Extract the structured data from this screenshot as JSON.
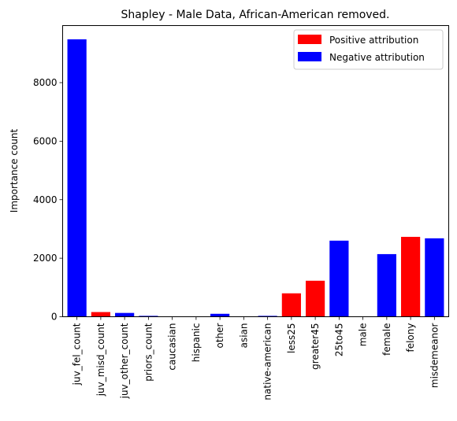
{
  "chart_data": {
    "type": "bar",
    "title": "Shapley - Male Data, African-American removed.",
    "xlabel": "",
    "ylabel": "Importance count",
    "ylim": [
      0,
      9950
    ],
    "yticks": [
      0,
      2000,
      4000,
      6000,
      8000
    ],
    "grid": false,
    "legend_position": "top-right",
    "categories": [
      "juv_fel_count",
      "juv_misd_count",
      "juv_other_count",
      "priors_count",
      "caucasian",
      "hispanic",
      "other",
      "asian",
      "native-american",
      "less25",
      "greater45",
      "25to45",
      "male",
      "female",
      "felony",
      "misdemeanor"
    ],
    "values": [
      9480,
      160,
      130,
      30,
      0,
      0,
      100,
      0,
      30,
      800,
      1230,
      2600,
      0,
      2140,
      2730,
      2680
    ],
    "attribution": [
      "negative",
      "positive",
      "negative",
      "negative",
      "negative",
      "negative",
      "negative",
      "negative",
      "negative",
      "positive",
      "positive",
      "negative",
      "negative",
      "negative",
      "positive",
      "negative"
    ],
    "legend": [
      {
        "label": "Positive attribution",
        "color": "#ff0000"
      },
      {
        "label": "Negative attribution",
        "color": "#0000ff"
      }
    ],
    "colors": {
      "positive": "#ff0000",
      "negative": "#0000ff"
    }
  }
}
